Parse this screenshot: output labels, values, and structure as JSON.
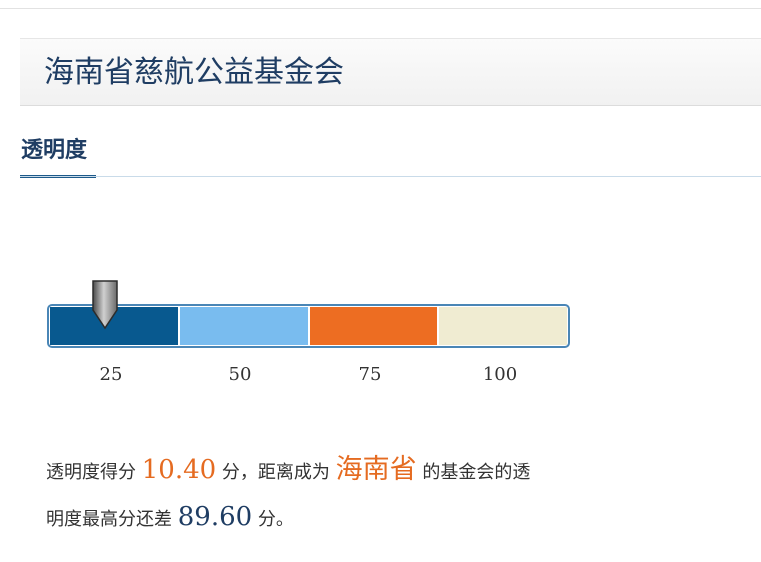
{
  "header": {
    "org_name": "海南省慈航公益基金会"
  },
  "tabs": [
    {
      "label": "透明度",
      "active": true
    }
  ],
  "gauge": {
    "score": 10.4,
    "ticks": [
      "25",
      "50",
      "75",
      "100"
    ],
    "segment_colors": [
      "#08598f",
      "#79bcef",
      "#ed6d22",
      "#f0ecd2"
    ],
    "marker": "pointer-marker-icon"
  },
  "summary": {
    "line1_prefix": "透明度得分",
    "score": "10.40",
    "line1_unit": "分，距离成为",
    "province": "海南省",
    "line1_suffix": "的基金会的透",
    "line2_prefix": "明度最高分还差",
    "gap": "89.60",
    "line2_suffix": "分。"
  },
  "colors": {
    "title": "#1f3d63",
    "accent_orange": "#e56b21",
    "tab_underline": "#1e5a8a"
  }
}
